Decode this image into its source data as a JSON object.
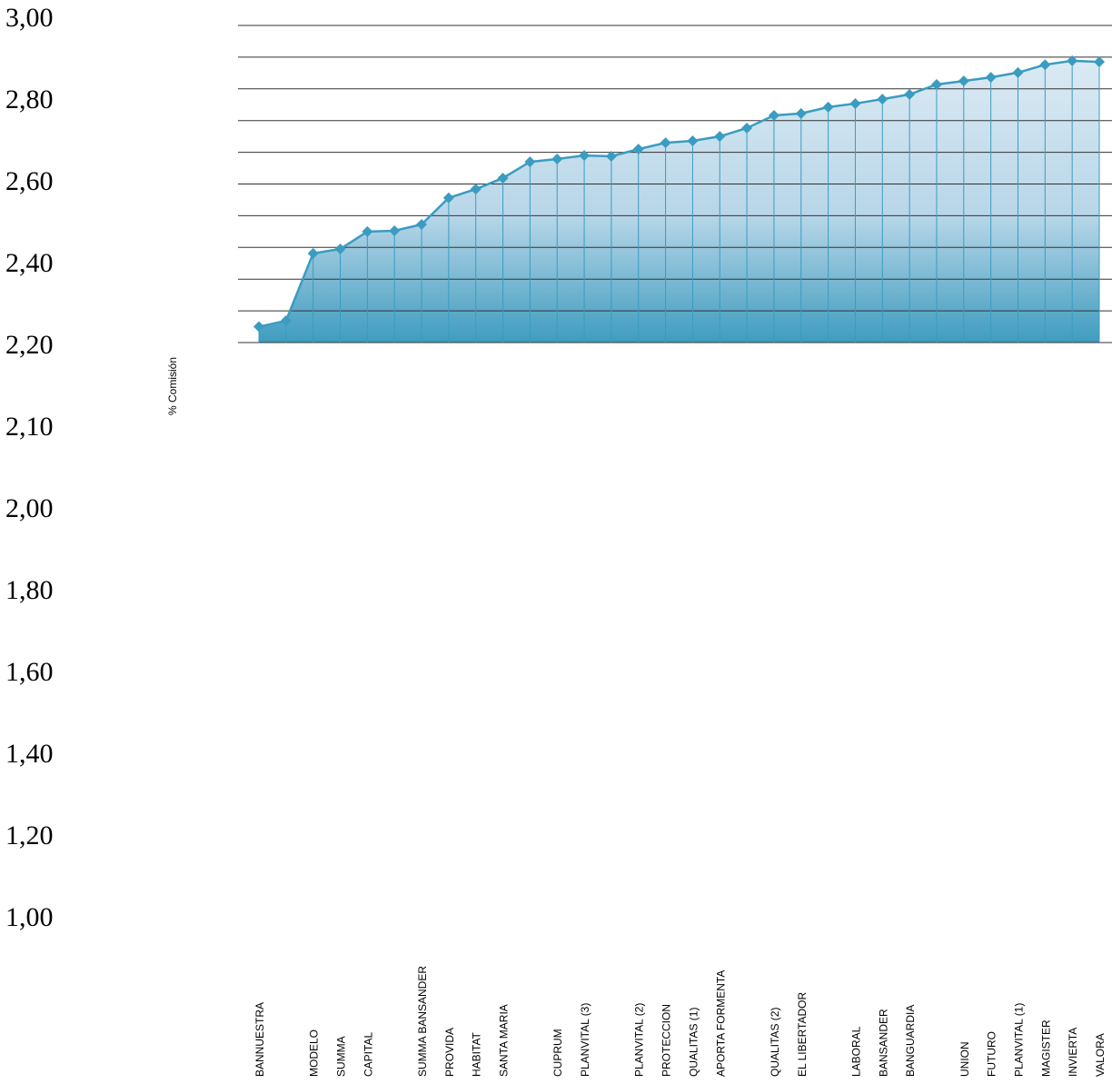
{
  "chart_data": {
    "type": "area-line",
    "y_axis_title": "% Comisión",
    "y_axis_labels": [
      "3,00",
      "2,80",
      "2,60",
      "2,40",
      "2,20",
      "2,10",
      "2,00",
      "1,80",
      "1,60",
      "1,40",
      "1,20",
      "1,00"
    ],
    "ylim": [
      2.2,
      3.0
    ],
    "grid_values": [
      2.2,
      2.28,
      2.36,
      2.44,
      2.52,
      2.6,
      2.68,
      2.76,
      2.84,
      2.92,
      3.0
    ],
    "categories": [
      "BANNUESTRA",
      null,
      "MODELO",
      "SUMMA",
      "CAPITAL",
      null,
      "SUMMA BANSANDER",
      "PROVIDA",
      "HABITAT",
      "SANTA MARIA",
      null,
      "CUPRUM",
      "PLANVITAL  (3)",
      null,
      "PLANVITAL (2)",
      "PROTECCION",
      "QUALITAS (1)",
      "APORTA FORMENTA",
      null,
      "QUALITAS (2)",
      "EL LIBERTADOR",
      null,
      "LABORAL",
      "BANSANDER",
      "BANGUARDIA",
      null,
      "UNION",
      "FUTURO",
      "PLANVITAL (1)",
      "MAGISTER",
      "INVIERTA",
      "VALORA"
    ],
    "values": [
      2.24,
      2.255,
      2.425,
      2.436,
      2.48,
      2.482,
      2.498,
      2.565,
      2.587,
      2.615,
      2.656,
      2.663,
      2.672,
      2.67,
      2.688,
      2.704,
      2.709,
      2.72,
      2.741,
      2.773,
      2.778,
      2.794,
      2.803,
      2.814,
      2.826,
      2.851,
      2.86,
      2.869,
      2.881,
      2.901,
      2.911,
      2.908
    ],
    "color": "#3a9cc0"
  }
}
